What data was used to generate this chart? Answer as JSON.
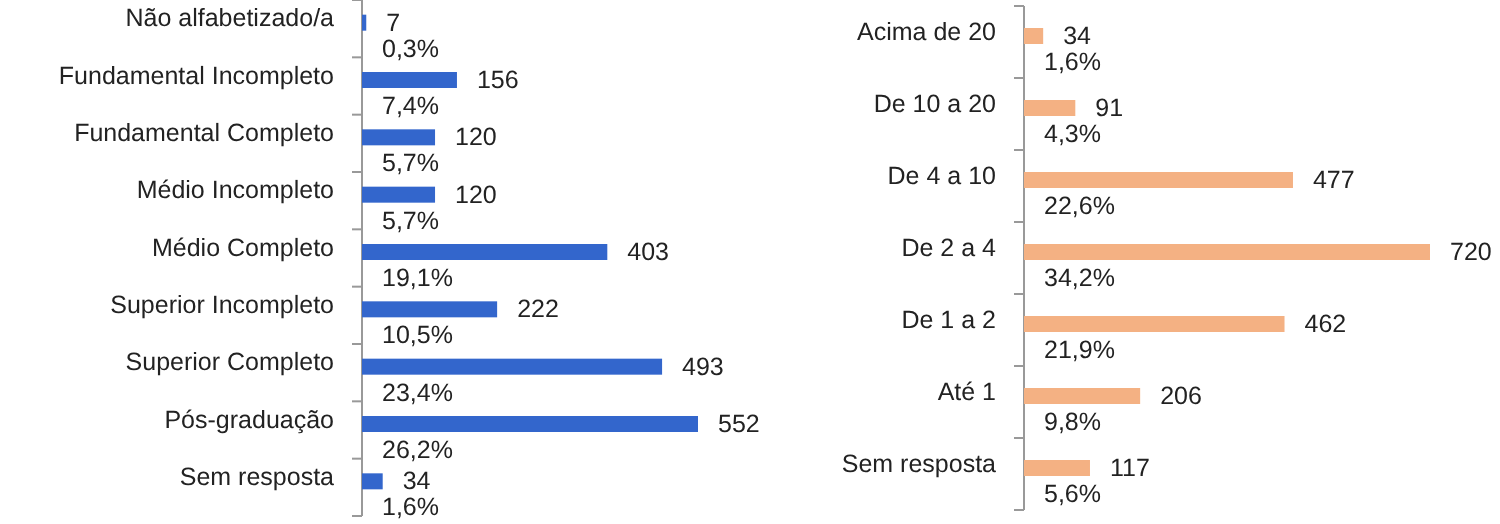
{
  "chart_data": [
    {
      "type": "bar",
      "orientation": "horizontal",
      "data_labels": true,
      "color": "#3366cc",
      "categories": [
        "Não alfabetizado/a",
        "Fundamental Incompleto",
        "Fundamental Completo",
        "Médio Incompleto",
        "Médio Completo",
        "Superior Incompleto",
        "Superior Completo",
        "Pós-graduação",
        "Sem resposta"
      ],
      "values": [
        7,
        156,
        120,
        120,
        403,
        222,
        493,
        552,
        34
      ],
      "annotations": [
        "0,3%",
        "7,4%",
        "5,7%",
        "5,7%",
        "19,1%",
        "10,5%",
        "23,4%",
        "26,2%",
        "1,6%"
      ]
    },
    {
      "type": "bar",
      "orientation": "horizontal",
      "data_labels": true,
      "color": "#f4b183",
      "categories": [
        "Acima de 20",
        "De 10 a 20",
        "De 4 a 10",
        "De 2 a 4",
        "De 1 a 2",
        "Até 1",
        "Sem resposta"
      ],
      "values": [
        34,
        91,
        477,
        720,
        462,
        206,
        117
      ],
      "annotations": [
        "1,6%",
        "4,3%",
        "22,6%",
        "34,2%",
        "21,9%",
        "9,8%",
        "5,6%"
      ]
    }
  ]
}
